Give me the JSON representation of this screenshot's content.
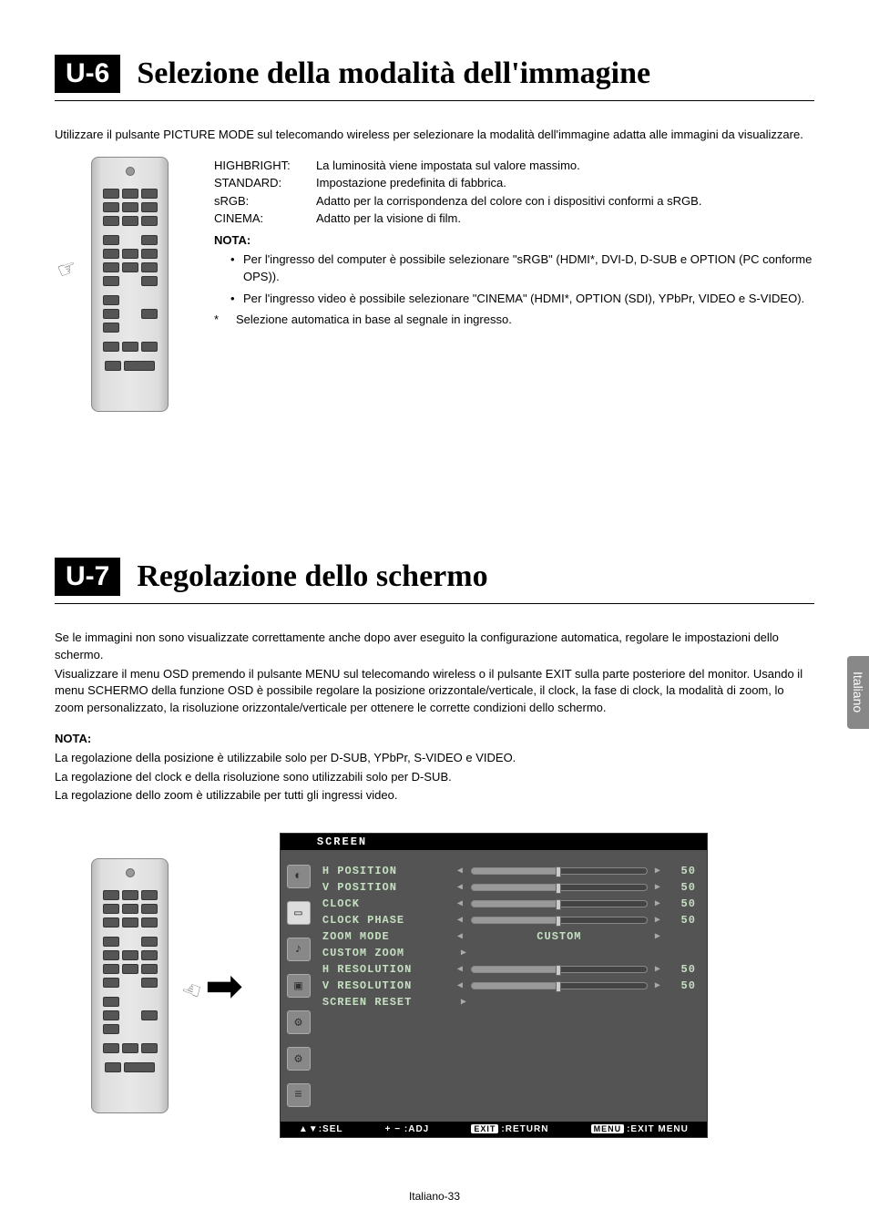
{
  "section1": {
    "tag": "U-6",
    "title": "Selezione della modalità dell'immagine",
    "intro": "Utilizzare il pulsante PICTURE MODE sul telecomando wireless per selezionare la modalità dell'immagine adatta alle immagini da visualizzare.",
    "modes": [
      {
        "label": "HIGHBRIGHT:",
        "desc": "La luminosità viene impostata sul valore massimo."
      },
      {
        "label": "STANDARD:",
        "desc": "Impostazione predefinita di fabbrica."
      },
      {
        "label": "sRGB:",
        "desc": "Adatto per la corrispondenza del colore con i dispositivi conformi a sRGB."
      },
      {
        "label": "CINEMA:",
        "desc": "Adatto per la visione di film."
      }
    ],
    "nota_label": "NOTA:",
    "bullets": [
      "Per l'ingresso del computer è possibile selezionare \"sRGB\" (HDMI*, DVI-D, D-SUB e OPTION (PC conforme OPS)).",
      "Per l'ingresso video è possibile selezionare \"CINEMA\" (HDMI*, OPTION (SDI), YPbPr, VIDEO e S-VIDEO)."
    ],
    "asterisk": "*",
    "asterisk_text": "Selezione automatica in base al segnale in ingresso."
  },
  "section2": {
    "tag": "U-7",
    "title": "Regolazione dello schermo",
    "paragraphs": [
      "Se le immagini non sono visualizzate correttamente anche dopo aver eseguito la configurazione automatica, regolare le impostazioni dello schermo.",
      "Visualizzare il menu OSD premendo il pulsante MENU sul telecomando wireless o il pulsante EXIT sulla parte posteriore del monitor. Usando il menu SCHERMO della funzione OSD è possibile regolare la posizione orizzontale/verticale, il clock, la fase di clock, la modalità di zoom, lo zoom personalizzato, la risoluzione orizzontale/verticale per ottenere le corrette condizioni dello schermo."
    ],
    "nota_label": "NOTA:",
    "nota_lines": [
      "La regolazione della posizione è utilizzabile solo per D-SUB, YPbPr, S-VIDEO e VIDEO.",
      "La regolazione del clock e della risoluzione sono utilizzabili solo per D-SUB.",
      "La regolazione dello zoom è utilizzabile per tutti gli ingressi video."
    ]
  },
  "osd": {
    "header": "SCREEN",
    "rows": [
      {
        "label": "H POSITION",
        "type": "slider",
        "value": "50"
      },
      {
        "label": "V POSITION",
        "type": "slider",
        "value": "50"
      },
      {
        "label": "CLOCK",
        "type": "slider",
        "value": "50"
      },
      {
        "label": "CLOCK PHASE",
        "type": "slider",
        "value": "50"
      },
      {
        "label": "ZOOM MODE",
        "type": "enum",
        "text": "CUSTOM"
      },
      {
        "label": "CUSTOM ZOOM",
        "type": "arrow"
      },
      {
        "label": "H RESOLUTION",
        "type": "slider",
        "value": "50"
      },
      {
        "label": "V RESOLUTION",
        "type": "slider",
        "value": "50"
      },
      {
        "label": "SCREEN RESET",
        "type": "arrow"
      }
    ],
    "footer": {
      "sel": "SEL",
      "adj": "ADJ",
      "ret_btn": "EXIT",
      "ret": "RETURN",
      "menu_btn": "MENU",
      "menu": "EXIT MENU"
    }
  },
  "side_tab": "Italiano",
  "page_number": "Italiano-33"
}
